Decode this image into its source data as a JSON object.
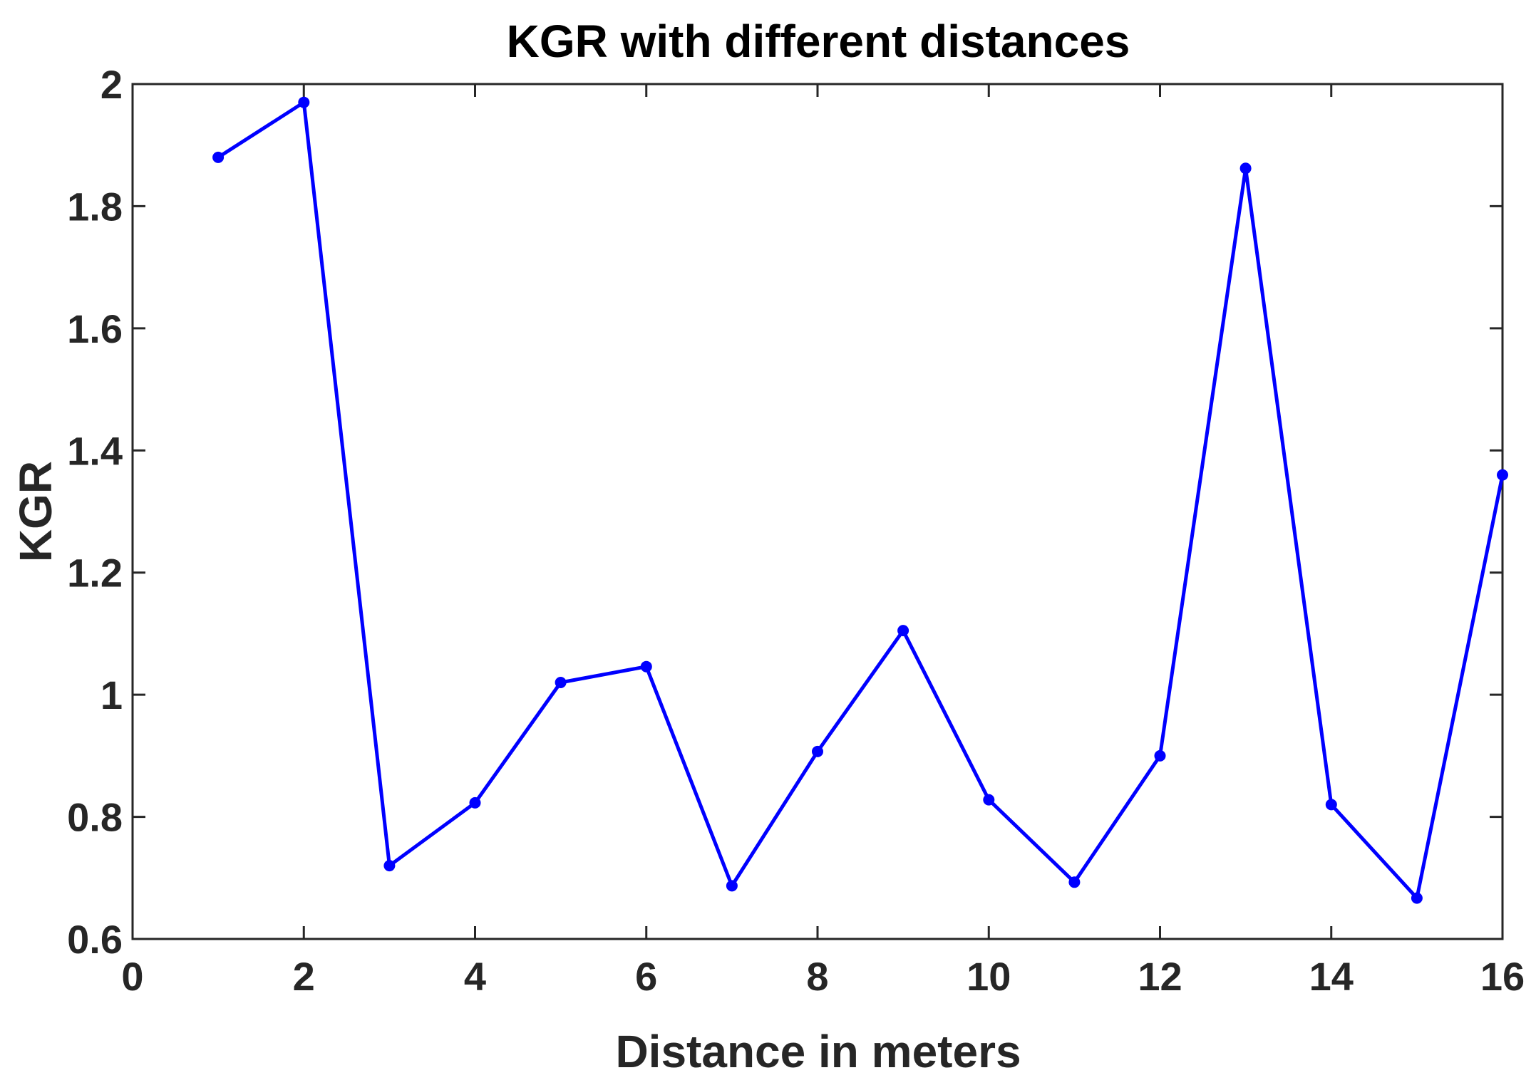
{
  "chart_data": {
    "type": "line",
    "title": "KGR with different distances",
    "xlabel": "Distance in meters",
    "ylabel": "KGR",
    "xlim": [
      0,
      16
    ],
    "ylim": [
      0.6,
      2
    ],
    "xticks": [
      "0",
      "2",
      "4",
      "6",
      "8",
      "10",
      "12",
      "14",
      "16"
    ],
    "yticks": [
      "0.6",
      "0.8",
      "1",
      "1.2",
      "1.4",
      "1.6",
      "1.8",
      "2"
    ],
    "grid": false,
    "series": [
      {
        "color": "#0000ff",
        "x": [
          1,
          2,
          3,
          4,
          5,
          6,
          7,
          8,
          9,
          10,
          11,
          12,
          13,
          14,
          15,
          16
        ],
        "values": [
          1.88,
          1.97,
          0.72,
          0.823,
          1.02,
          1.046,
          0.687,
          0.907,
          1.105,
          0.828,
          0.693,
          0.9,
          1.862,
          0.82,
          0.667,
          1.36
        ]
      }
    ]
  }
}
